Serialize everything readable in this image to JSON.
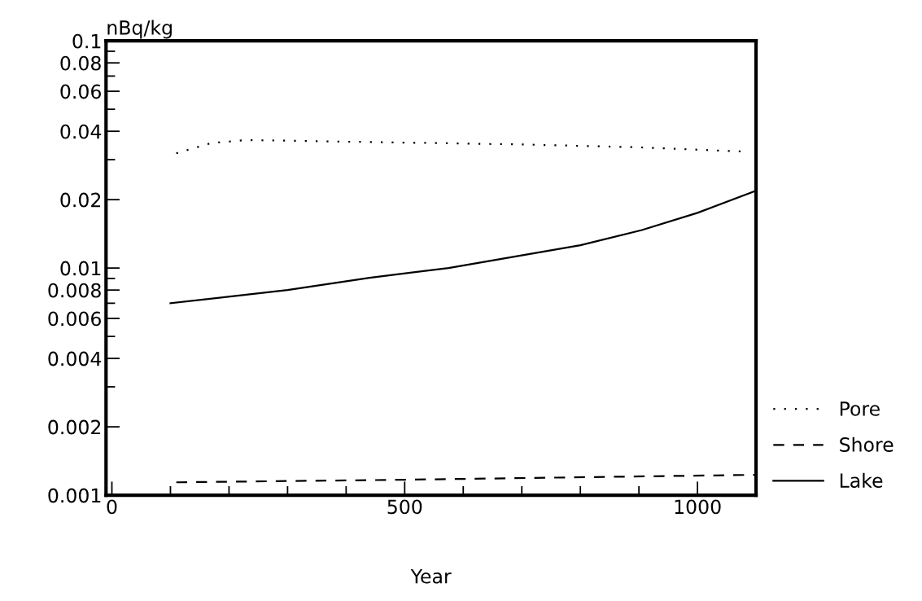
{
  "chart_data": {
    "type": "line",
    "xlabel": "Year",
    "ylabel": "nBq/kg",
    "log": "y",
    "xlim": [
      -10,
      1100
    ],
    "ylim": [
      0.001,
      0.1
    ],
    "xticks": [
      0,
      {
        "value": 100,
        "label": null
      },
      {
        "value": 200,
        "label": null
      },
      {
        "value": 300,
        "label": null
      },
      {
        "value": 400,
        "label": null
      },
      500,
      {
        "value": 600,
        "label": null
      },
      {
        "value": 700,
        "label": null
      },
      {
        "value": 800,
        "label": null
      },
      {
        "value": 900,
        "label": null
      },
      1000
    ],
    "yticks": [
      0.001,
      0.002,
      {
        "value": 0.003,
        "label": null
      },
      0.004,
      {
        "value": 0.005,
        "label": null
      },
      0.006,
      {
        "value": 0.007,
        "label": null
      },
      0.008,
      {
        "value": 0.009,
        "label": null
      },
      0.01,
      0.02,
      {
        "value": 0.03,
        "label": null
      },
      0.04,
      {
        "value": 0.05,
        "label": null
      },
      0.06,
      {
        "value": 0.07,
        "label": null
      },
      0.08,
      {
        "value": 0.09,
        "label": null
      },
      0.1
    ],
    "grid": false,
    "legend": "right",
    "marker": "none",
    "series": [
      {
        "name": "Pore",
        "color": "#000000",
        "line_style": "dotted",
        "x": [
          110,
          170,
          230,
          400,
          700,
          900,
          1075
        ],
        "values": [
          0.032,
          0.0355,
          0.0366,
          0.036,
          0.035,
          0.034,
          0.0326
        ]
      },
      {
        "name": "Shore",
        "color": "#000000",
        "line_style": "dashed",
        "x": [
          110,
          500,
          1100
        ],
        "values": [
          0.00114,
          0.00117,
          0.00123
        ]
      },
      {
        "name": "Lake",
        "color": "#000000",
        "line_style": "solid",
        "x": [
          100,
          300,
          440,
          575,
          800,
          905,
          1000,
          1100
        ],
        "values": [
          0.007,
          0.008,
          0.00906,
          0.01,
          0.0126,
          0.0147,
          0.0175,
          0.0219
        ]
      }
    ]
  }
}
